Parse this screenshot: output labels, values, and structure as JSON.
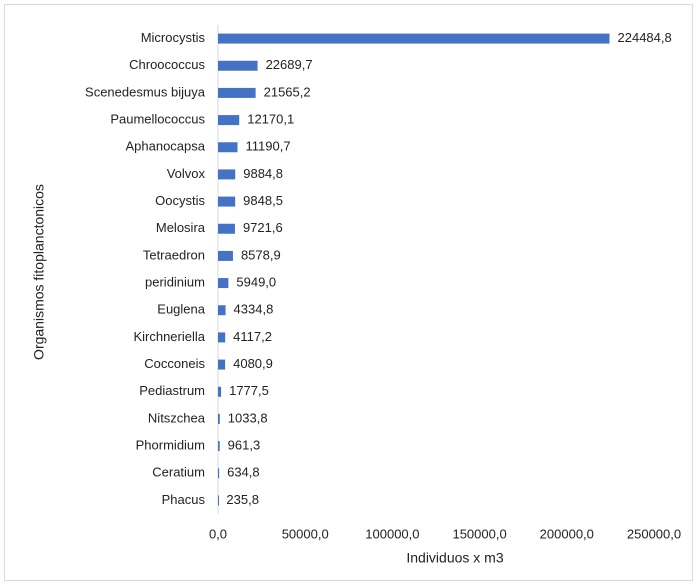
{
  "chart_data": {
    "type": "barh",
    "xlabel": "Individuos x m3",
    "ylabel": "Organismos fitoplanctonicos",
    "categories": [
      "Microcystis",
      "Chroococcus",
      "Scenedesmus bijuya",
      "Paumellococcus",
      "Aphanocapsa",
      "Volvox",
      "Oocystis",
      "Melosira",
      "Tetraedron",
      "peridinium",
      "Euglena",
      "Kirchneriella",
      "Cocconeis",
      "Pediastrum",
      "Nitszchea",
      "Phormidium",
      "Ceratium",
      "Phacus"
    ],
    "values": [
      224484.8,
      22689.7,
      21565.2,
      12170.1,
      11190.7,
      9884.8,
      9848.5,
      9721.6,
      8578.9,
      5949.0,
      4334.8,
      4117.2,
      4080.9,
      1777.5,
      1033.8,
      961.3,
      634.8,
      235.8
    ],
    "value_labels": [
      "224484,8",
      "22689,7",
      "21565,2",
      "12170,1",
      "11190,7",
      "9884,8",
      "9848,5",
      "9721,6",
      "8578,9",
      "5949,0",
      "4334,8",
      "4117,2",
      "4080,9",
      "1777,5",
      "1033,8",
      "961,3",
      "634,8",
      "235,8"
    ],
    "color": "#4472c4",
    "xlim": [
      0,
      250000
    ],
    "xticks": [
      {
        "value": 0,
        "label": "0,0"
      },
      {
        "value": 50000,
        "label": "50000,0"
      },
      {
        "value": 100000,
        "label": "100000,0"
      },
      {
        "value": 150000,
        "label": "150000,0"
      },
      {
        "value": 200000,
        "label": "200000,0"
      },
      {
        "value": 250000,
        "label": "250000,0"
      }
    ]
  }
}
